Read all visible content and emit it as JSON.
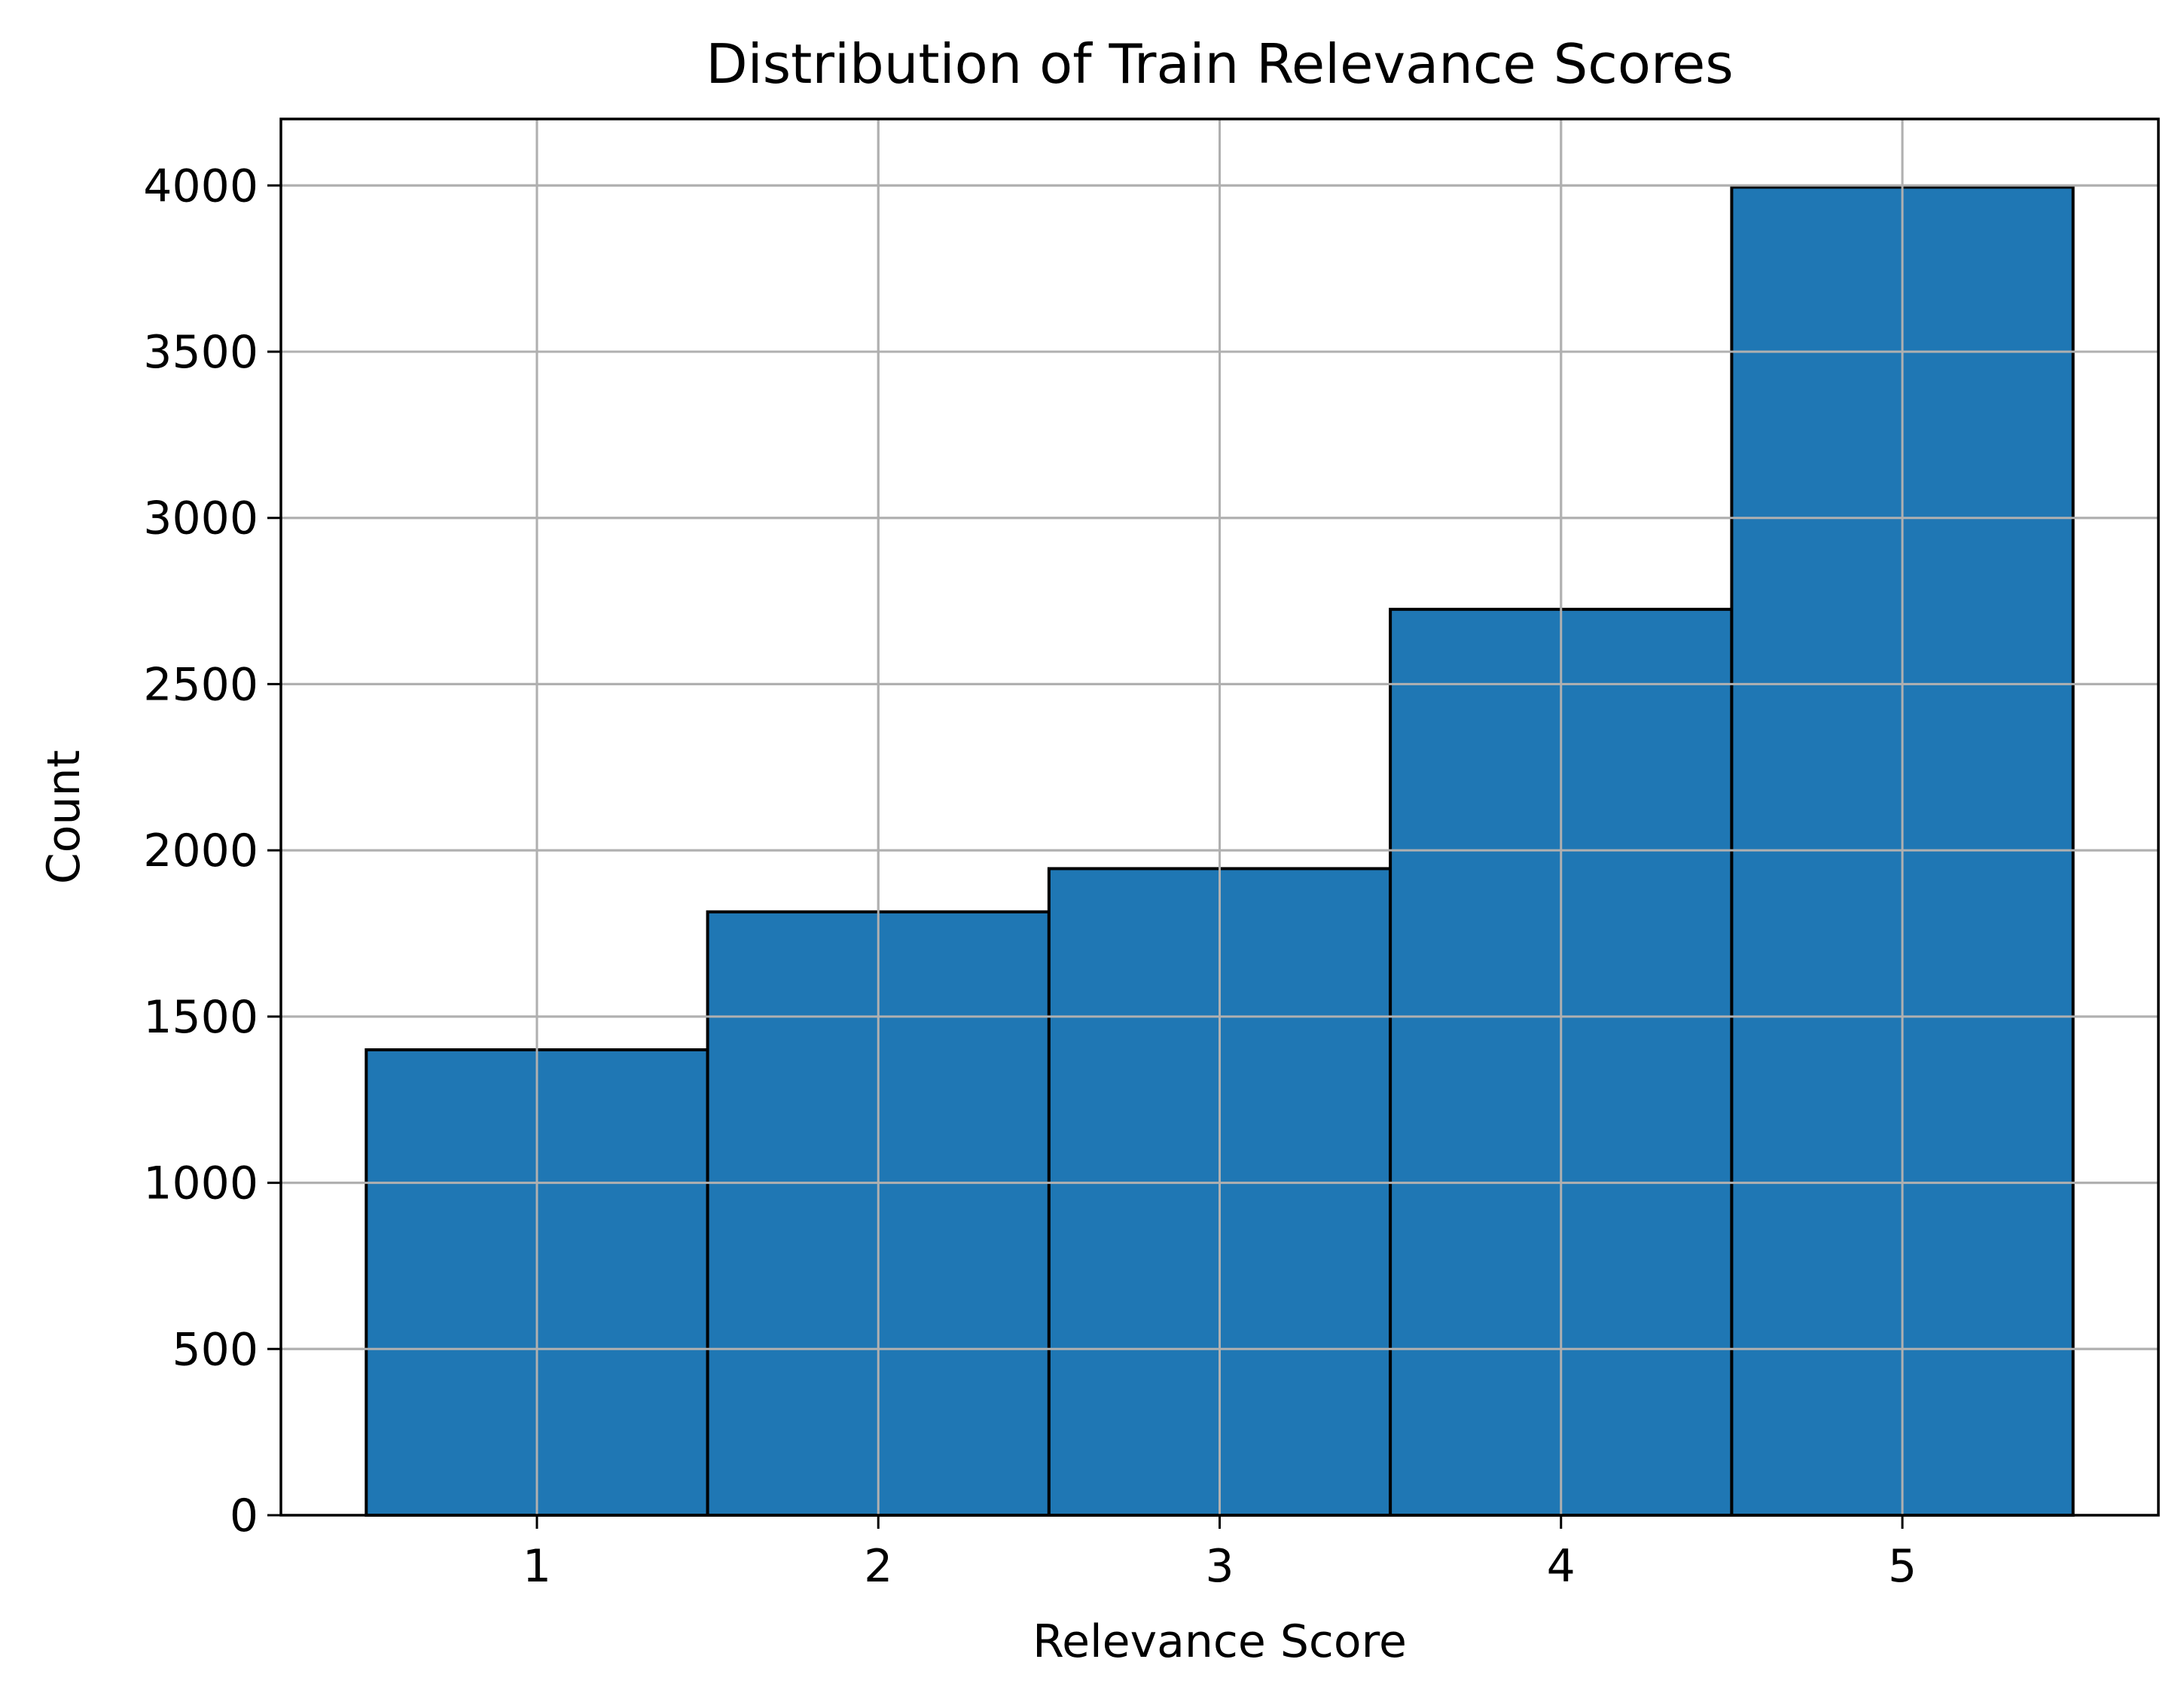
{
  "chart_data": {
    "type": "bar",
    "title": "Distribution of Train Relevance Scores",
    "xlabel": "Relevance Score",
    "ylabel": "Count",
    "categories": [
      "1",
      "2",
      "3",
      "4",
      "5"
    ],
    "x": [
      1,
      2,
      3,
      4,
      5
    ],
    "values": [
      1400,
      1815,
      1945,
      2725,
      3995
    ],
    "xlim": [
      0.25,
      5.75
    ],
    "ylim": [
      0,
      4200
    ],
    "x_ticks": [
      1,
      2,
      3,
      4,
      5
    ],
    "y_ticks": [
      0,
      500,
      1000,
      1500,
      2000,
      2500,
      3000,
      3500,
      4000
    ],
    "bar_color": "#1f77b4",
    "edge_color": "#000000",
    "grid": true,
    "grid_color": "#b0b0b0",
    "legend": false
  }
}
